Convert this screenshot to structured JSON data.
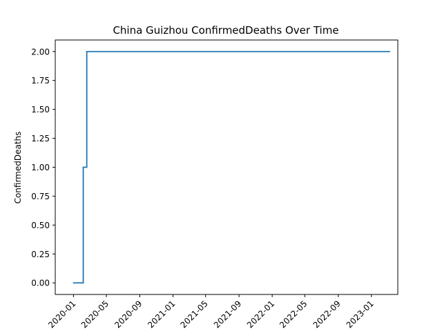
{
  "chart_data": {
    "type": "line",
    "title": "China Guizhou ConfirmedDeaths Over Time",
    "xlabel": "",
    "ylabel": "ConfirmedDeaths",
    "xlim": [
      "2019-10-26",
      "2023-04-08"
    ],
    "ylim": [
      -0.1,
      2.1
    ],
    "grid": false,
    "legend": "none",
    "x_ticks": [
      "2020-01",
      "2020-05",
      "2020-09",
      "2021-01",
      "2021-05",
      "2021-09",
      "2022-01",
      "2022-05",
      "2022-09",
      "2023-01"
    ],
    "y_ticks": [
      "0.00",
      "0.25",
      "0.50",
      "0.75",
      "1.00",
      "1.25",
      "1.50",
      "1.75",
      "2.00"
    ],
    "series": [
      {
        "color": "#1f77b4",
        "step": true,
        "points": [
          {
            "x": "2020-01-01",
            "y": 0
          },
          {
            "x": "2020-02-05",
            "y": 0
          },
          {
            "x": "2020-02-06",
            "y": 1
          },
          {
            "x": "2020-02-18",
            "y": 1
          },
          {
            "x": "2020-02-19",
            "y": 2
          },
          {
            "x": "2023-03-09",
            "y": 2
          }
        ]
      }
    ]
  }
}
